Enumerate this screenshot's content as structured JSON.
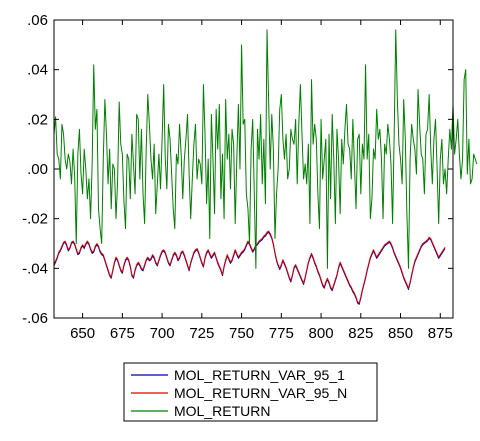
{
  "chart_data": {
    "type": "line",
    "title": "",
    "xlabel": "",
    "ylabel": "",
    "xlim": [
      632,
      883
    ],
    "ylim": [
      -0.06,
      0.06
    ],
    "x_ticks": [
      650,
      675,
      700,
      725,
      750,
      775,
      800,
      825,
      850,
      875
    ],
    "y_ticks": [
      -0.06,
      -0.04,
      -0.02,
      0.0,
      0.02,
      0.04,
      0.06
    ],
    "y_tick_labels": [
      "-.06",
      "-.04",
      "-.02",
      ".00",
      ".02",
      ".04",
      ".06"
    ],
    "grid": false,
    "legend_position": "bottom",
    "x_start": 632,
    "series": [
      {
        "name": "MOL_RETURN_VAR_95_1",
        "color": "#0000a0",
        "values": [
          -0.039,
          -0.0375,
          -0.036,
          -0.034,
          -0.033,
          -0.0315,
          -0.03,
          -0.0295,
          -0.031,
          -0.033,
          -0.032,
          -0.03,
          -0.0295,
          -0.0305,
          -0.0325,
          -0.0345,
          -0.034,
          -0.032,
          -0.031,
          -0.032,
          -0.0305,
          -0.0295,
          -0.0305,
          -0.0325,
          -0.034,
          -0.0335,
          -0.0315,
          -0.0305,
          -0.0315,
          -0.0335,
          -0.0345,
          -0.035,
          -0.037,
          -0.039,
          -0.041,
          -0.043,
          -0.044,
          -0.041,
          -0.038,
          -0.036,
          -0.037,
          -0.039,
          -0.041,
          -0.042,
          -0.039,
          -0.037,
          -0.036,
          -0.037,
          -0.0395,
          -0.043,
          -0.044,
          -0.041,
          -0.039,
          -0.038,
          -0.039,
          -0.0405,
          -0.041,
          -0.039,
          -0.037,
          -0.036,
          -0.037,
          -0.0365,
          -0.035,
          -0.036,
          -0.038,
          -0.039,
          -0.037,
          -0.035,
          -0.0335,
          -0.033,
          -0.034,
          -0.036,
          -0.038,
          -0.039,
          -0.037,
          -0.035,
          -0.034,
          -0.035,
          -0.037,
          -0.036,
          -0.034,
          -0.0335,
          -0.035,
          -0.037,
          -0.039,
          -0.041,
          -0.038,
          -0.036,
          -0.034,
          -0.033,
          -0.0325,
          -0.034,
          -0.036,
          -0.038,
          -0.0395,
          -0.036,
          -0.034,
          -0.033,
          -0.0345,
          -0.036,
          -0.035,
          -0.034,
          -0.036,
          -0.038,
          -0.0395,
          -0.041,
          -0.043,
          -0.0395,
          -0.037,
          -0.035,
          -0.0365,
          -0.038,
          -0.037,
          -0.035,
          -0.033,
          -0.0345,
          -0.036,
          -0.035,
          -0.034,
          -0.0335,
          -0.0325,
          -0.031,
          -0.0295,
          -0.0305,
          -0.032,
          -0.0335,
          -0.0325,
          -0.031,
          -0.0305,
          -0.0295,
          -0.029,
          -0.0285,
          -0.0275,
          -0.027,
          -0.026,
          -0.0255,
          -0.0265,
          -0.028,
          -0.0305,
          -0.034,
          -0.037,
          -0.039,
          -0.0405,
          -0.039,
          -0.037,
          -0.0385,
          -0.04,
          -0.042,
          -0.044,
          -0.0455,
          -0.043,
          -0.04,
          -0.039,
          -0.0405,
          -0.042,
          -0.0435,
          -0.045,
          -0.0465,
          -0.044,
          -0.041,
          -0.038,
          -0.036,
          -0.0345,
          -0.036,
          -0.038,
          -0.0395,
          -0.0415,
          -0.043,
          -0.045,
          -0.047,
          -0.048,
          -0.046,
          -0.0445,
          -0.046,
          -0.048,
          -0.049,
          -0.047,
          -0.045,
          -0.043,
          -0.04,
          -0.038,
          -0.0395,
          -0.041,
          -0.0425,
          -0.044,
          -0.0455,
          -0.047,
          -0.048,
          -0.0495,
          -0.0505,
          -0.052,
          -0.054,
          -0.0545,
          -0.052,
          -0.049,
          -0.0465,
          -0.044,
          -0.041,
          -0.0385,
          -0.036,
          -0.0345,
          -0.033,
          -0.0345,
          -0.036,
          -0.035,
          -0.034,
          -0.033,
          -0.032,
          -0.031,
          -0.0305,
          -0.03,
          -0.0295,
          -0.0305,
          -0.032,
          -0.034,
          -0.0355,
          -0.037,
          -0.0385,
          -0.04,
          -0.042,
          -0.044,
          -0.0455,
          -0.047,
          -0.0485,
          -0.046,
          -0.043,
          -0.04,
          -0.0375,
          -0.036,
          -0.0345,
          -0.033,
          -0.0315,
          -0.0305,
          -0.03,
          -0.0295,
          -0.029,
          -0.028,
          -0.0285,
          -0.03,
          -0.0315,
          -0.033,
          -0.0345,
          -0.036,
          -0.035,
          -0.034,
          -0.033,
          -0.032
        ]
      },
      {
        "name": "MOL_RETURN_VAR_95_N",
        "color": "#e00000",
        "values": [
          -0.0385,
          -0.037,
          -0.0355,
          -0.0335,
          -0.0325,
          -0.031,
          -0.0295,
          -0.029,
          -0.0305,
          -0.0325,
          -0.0315,
          -0.0295,
          -0.029,
          -0.03,
          -0.032,
          -0.034,
          -0.0335,
          -0.0315,
          -0.0305,
          -0.0315,
          -0.03,
          -0.029,
          -0.03,
          -0.032,
          -0.0335,
          -0.033,
          -0.031,
          -0.03,
          -0.031,
          -0.033,
          -0.034,
          -0.0345,
          -0.0365,
          -0.0385,
          -0.0405,
          -0.0425,
          -0.0435,
          -0.0405,
          -0.0375,
          -0.0355,
          -0.0365,
          -0.0385,
          -0.0405,
          -0.0415,
          -0.0385,
          -0.0365,
          -0.0355,
          -0.0365,
          -0.039,
          -0.0425,
          -0.0435,
          -0.0405,
          -0.0385,
          -0.0375,
          -0.0385,
          -0.04,
          -0.0405,
          -0.0385,
          -0.0365,
          -0.0355,
          -0.0365,
          -0.036,
          -0.0345,
          -0.0355,
          -0.0375,
          -0.0385,
          -0.0365,
          -0.0345,
          -0.033,
          -0.0325,
          -0.0335,
          -0.0355,
          -0.0375,
          -0.0385,
          -0.0365,
          -0.0345,
          -0.0335,
          -0.0345,
          -0.0365,
          -0.0355,
          -0.0335,
          -0.033,
          -0.0345,
          -0.0365,
          -0.0385,
          -0.0405,
          -0.0375,
          -0.0355,
          -0.0335,
          -0.0325,
          -0.032,
          -0.0335,
          -0.0355,
          -0.0375,
          -0.039,
          -0.0355,
          -0.0335,
          -0.0325,
          -0.034,
          -0.0355,
          -0.0345,
          -0.0335,
          -0.0355,
          -0.0375,
          -0.039,
          -0.0405,
          -0.0425,
          -0.039,
          -0.0365,
          -0.0345,
          -0.036,
          -0.0375,
          -0.0365,
          -0.0345,
          -0.0325,
          -0.034,
          -0.0355,
          -0.0345,
          -0.0335,
          -0.033,
          -0.032,
          -0.0305,
          -0.029,
          -0.03,
          -0.0315,
          -0.033,
          -0.032,
          -0.0305,
          -0.03,
          -0.029,
          -0.0285,
          -0.028,
          -0.027,
          -0.0265,
          -0.0255,
          -0.025,
          -0.026,
          -0.0275,
          -0.03,
          -0.0335,
          -0.0365,
          -0.0385,
          -0.04,
          -0.0385,
          -0.0365,
          -0.038,
          -0.0395,
          -0.0415,
          -0.0435,
          -0.045,
          -0.0425,
          -0.0395,
          -0.0385,
          -0.04,
          -0.0415,
          -0.043,
          -0.0445,
          -0.046,
          -0.0435,
          -0.0405,
          -0.0375,
          -0.0355,
          -0.034,
          -0.0355,
          -0.0375,
          -0.039,
          -0.041,
          -0.0425,
          -0.0445,
          -0.0465,
          -0.0475,
          -0.0455,
          -0.044,
          -0.0455,
          -0.0475,
          -0.0485,
          -0.0465,
          -0.0445,
          -0.0425,
          -0.0395,
          -0.0375,
          -0.039,
          -0.0405,
          -0.042,
          -0.0435,
          -0.045,
          -0.0465,
          -0.0475,
          -0.049,
          -0.05,
          -0.0515,
          -0.0535,
          -0.054,
          -0.0515,
          -0.0485,
          -0.046,
          -0.0435,
          -0.0405,
          -0.038,
          -0.0355,
          -0.034,
          -0.0325,
          -0.034,
          -0.0355,
          -0.0345,
          -0.0335,
          -0.0325,
          -0.0315,
          -0.0305,
          -0.03,
          -0.0295,
          -0.029,
          -0.03,
          -0.0315,
          -0.0335,
          -0.035,
          -0.0365,
          -0.038,
          -0.0395,
          -0.0415,
          -0.0435,
          -0.045,
          -0.0465,
          -0.048,
          -0.0455,
          -0.0425,
          -0.0395,
          -0.037,
          -0.0355,
          -0.034,
          -0.0325,
          -0.031,
          -0.03,
          -0.0295,
          -0.029,
          -0.0285,
          -0.0275,
          -0.028,
          -0.0295,
          -0.031,
          -0.0325,
          -0.034,
          -0.0355,
          -0.0345,
          -0.0335,
          -0.0325,
          -0.0315
        ]
      },
      {
        "name": "MOL_RETURN",
        "color": "#008000",
        "values": [
          0.014,
          0.021,
          0.006,
          0.004,
          -0.004,
          0.018,
          0.014,
          0.004,
          0.0,
          0.006,
          0.003,
          -0.006,
          0.008,
          -0.003,
          -0.03,
          0.006,
          0.016,
          -0.002,
          -0.01,
          0.008,
          0.0,
          -0.012,
          -0.004,
          -0.02,
          0.002,
          0.042,
          0.016,
          0.024,
          -0.016,
          -0.024,
          -0.03,
          0.004,
          0.028,
          0.014,
          -0.006,
          0.008,
          -0.016,
          0.002,
          0.0,
          -0.02,
          -0.005,
          0.027,
          0.01,
          0.006,
          -0.013,
          -0.024,
          0.006,
          0.004,
          -0.012,
          0.014,
          0.002,
          -0.01,
          0.022,
          0.02,
          -0.004,
          0.016,
          -0.01,
          -0.022,
          0.008,
          0.03,
          0.018,
          0.004,
          -0.004,
          0.01,
          -0.018,
          -0.006,
          0.006,
          -0.008,
          0.012,
          0.034,
          0.004,
          -0.008,
          0.018,
          0.012,
          -0.002,
          -0.016,
          -0.024,
          0.006,
          0.002,
          0.018,
          0.006,
          -0.012,
          0.004,
          0.012,
          0.022,
          -0.002,
          -0.02,
          -0.004,
          0.01,
          0.018,
          -0.004,
          0.004,
          0.002,
          -0.006,
          0.034,
          0.014,
          -0.014,
          0.004,
          -0.028,
          0.022,
          0.004,
          -0.018,
          0.024,
          0.008,
          0.026,
          -0.012,
          0.006,
          -0.02,
          0.028,
          0.004,
          0.014,
          -0.008,
          0.016,
          0.01,
          -0.022,
          0.004,
          0.026,
          0.0,
          0.05,
          0.018,
          0.02,
          -0.01,
          -0.016,
          -0.03,
          0.008,
          0.02,
          -0.01,
          -0.04,
          0.016,
          0.004,
          0.022,
          -0.006,
          0.012,
          -0.014,
          0.056,
          0.028,
          0.0,
          0.022,
          0.008,
          -0.028,
          -0.01,
          0.0,
          0.024,
          0.03,
          0.012,
          0.004,
          0.014,
          -0.004,
          0.0,
          0.016,
          0.012,
          0.01,
          0.02,
          -0.006,
          0.018,
          0.034,
          0.014,
          -0.004,
          0.002,
          -0.006,
          0.01,
          -0.022,
          0.036,
          0.01,
          0.018,
          0.012,
          -0.01,
          -0.024,
          0.02,
          -0.004,
          0.004,
          0.012,
          -0.04,
          0.014,
          -0.012,
          0.022,
          0.004,
          -0.022,
          0.016,
          0.004,
          -0.018,
          0.012,
          0.002,
          0.016,
          0.026,
          0.01,
          0.008,
          -0.004,
          0.02,
          0.002,
          -0.016,
          0.012,
          0.014,
          -0.01,
          0.01,
          0.004,
          0.042,
          0.004,
          0.014,
          -0.02,
          -0.012,
          0.008,
          0.004,
          0.024,
          0.012,
          0.016,
          0.004,
          -0.02,
          0.01,
          0.006,
          0.018,
          0.012,
          0.002,
          -0.022,
          0.014,
          0.056,
          0.028,
          0.01,
          0.004,
          -0.006,
          0.028,
          0.012,
          -0.018,
          -0.04,
          0.004,
          0.018,
          0.012,
          0.008,
          -0.002,
          0.032,
          0.018,
          0.006,
          0.004,
          -0.01,
          0.014,
          0.016,
          0.03,
          0.008,
          -0.006,
          0.012,
          0.02,
          0.0,
          -0.022,
          0.004,
          0.012,
          -0.006,
          0.0,
          -0.01,
          0.004,
          0.016,
          0.008,
          0.026,
          0.006,
          0.012,
          0.02,
          0.006,
          -0.004,
          0.004,
          0.036,
          0.04,
          -0.002,
          0.012,
          -0.006,
          -0.004,
          0.006,
          0.004,
          0.002
        ]
      }
    ]
  }
}
